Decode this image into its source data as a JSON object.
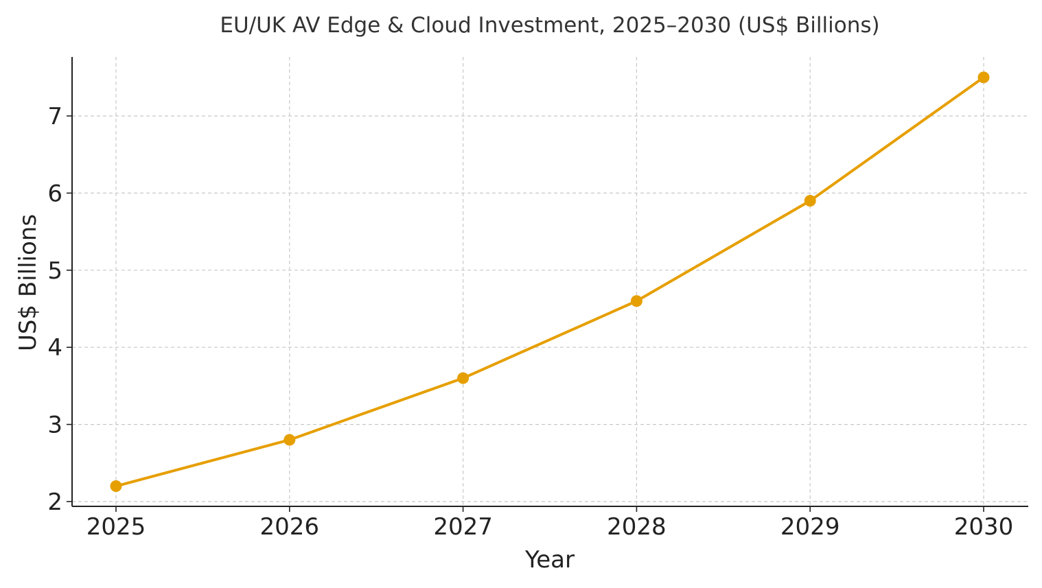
{
  "chart_data": {
    "type": "line",
    "title": "EU/UK AV Edge & Cloud Investment, 2025–2030 (US$ Billions)",
    "xlabel": "Year",
    "ylabel": "US$ Billions",
    "x": [
      "2025",
      "2026",
      "2027",
      "2028",
      "2029",
      "2030"
    ],
    "series": [
      {
        "values": [
          2.2,
          2.8,
          3.6,
          4.6,
          5.9,
          7.5
        ],
        "color": "#E69F00",
        "marker": "circle"
      }
    ],
    "yticks": [
      "2",
      "3",
      "4",
      "5",
      "6",
      "7"
    ],
    "ylim": [
      1.95,
      7.75
    ],
    "grid": true,
    "legend": "none"
  }
}
